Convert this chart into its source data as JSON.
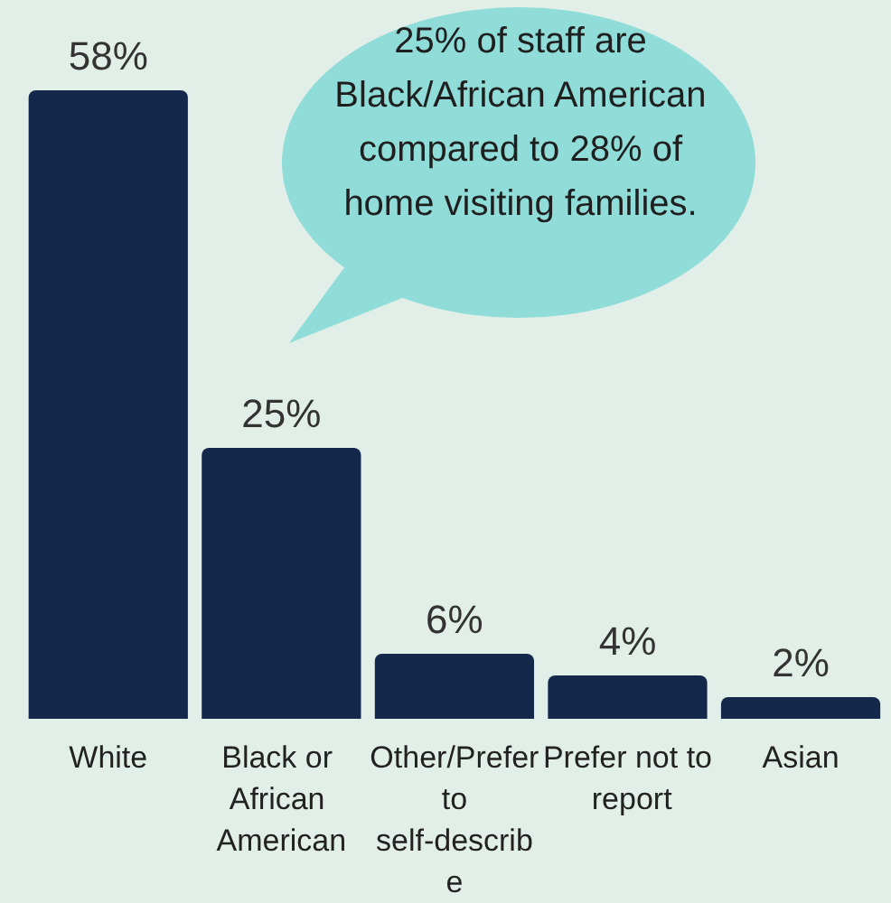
{
  "chart_data": {
    "type": "bar",
    "categories": [
      "White",
      "Black or African American",
      "Other/Prefer to self-describe",
      "Prefer not to report",
      "Asian"
    ],
    "values": [
      58,
      25,
      6,
      4,
      2
    ],
    "value_labels": [
      "58%",
      "25%",
      "6%",
      "4%",
      "2%"
    ],
    "color": "#14284b",
    "annotations": [
      "25% of staff are Black/African American compared to 28% of home visiting families."
    ],
    "grid": false
  }
}
